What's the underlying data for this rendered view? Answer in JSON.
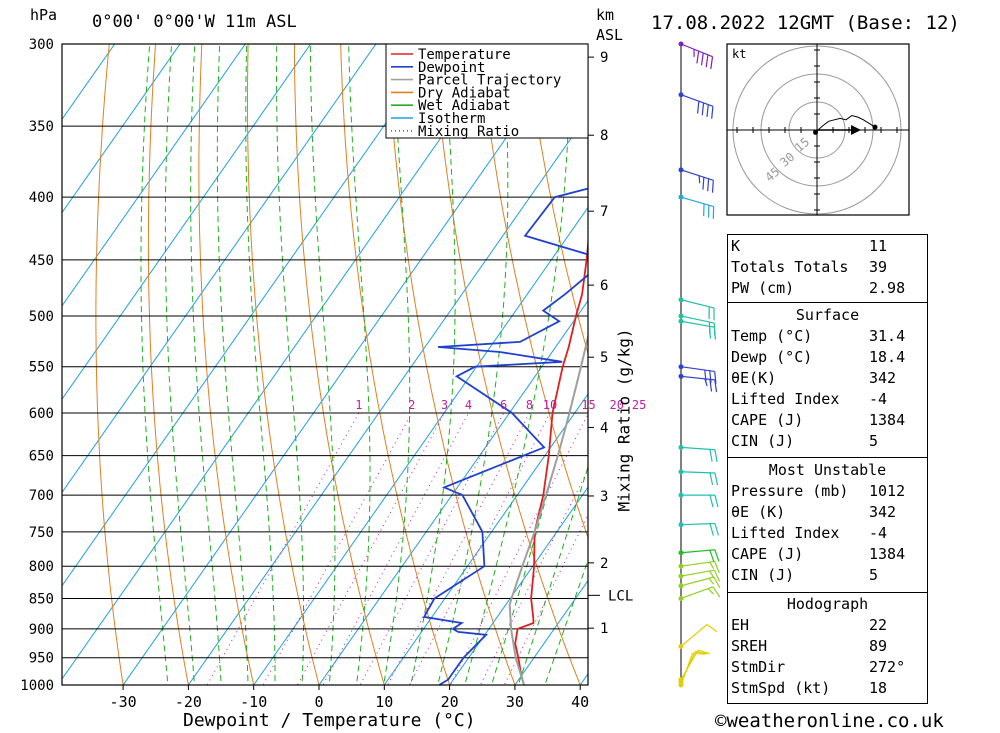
{
  "header": {
    "location": "0°00' 0°00'W 11m ASL",
    "datetime": "17.08.2022 12GMT (Base: 12)",
    "hpa_unit": "hPa",
    "km_unit": "km",
    "asl_unit": "ASL"
  },
  "legend": [
    "Temperature",
    "Dewpoint",
    "Parcel Trajectory",
    "Dry Adiabat",
    "Wet Adiabat",
    "Isotherm",
    "Mixing Ratio"
  ],
  "colors": {
    "temperature": "#e02020",
    "dewpoint": "#2040d0",
    "parcel": "#a0a0a0",
    "dry_adiabat": "#e08020",
    "wet_adiabat": "#20b020",
    "isotherm": "#20a0e0",
    "mixing_ratio": "#c020a0"
  },
  "chart_data": [
    {
      "type": "line",
      "xlabel": "Dewpoint / Temperature (°C)",
      "ylabel_right": "Mixing Ratio (g/kg)",
      "x_ticks": [
        -30,
        -20,
        -10,
        0,
        10,
        20,
        30,
        40
      ],
      "xlim": [
        -40,
        40
      ],
      "pressure_levels": [
        300,
        350,
        400,
        450,
        500,
        550,
        600,
        650,
        700,
        750,
        800,
        850,
        900,
        950,
        1000
      ],
      "ylim": [
        1000,
        300
      ],
      "km_ticks": [
        1,
        2,
        3,
        4,
        5,
        6,
        7,
        8,
        9
      ],
      "lcl_label": "LCL",
      "mixing_ratio_labels": [
        "1",
        "2",
        "3",
        "4",
        "6",
        "8",
        "10",
        "15",
        "20",
        "25"
      ],
      "series": [
        {
          "name": "Temperature",
          "points": [
            [
              1000,
              31.4
            ],
            [
              980,
              29.8
            ],
            [
              950,
              27.6
            ],
            [
              925,
              25.6
            ],
            [
              900,
              24.4
            ],
            [
              890,
              26.2
            ],
            [
              880,
              25.5
            ],
            [
              850,
              23.2
            ],
            [
              800,
              20.2
            ],
            [
              750,
              16.6
            ],
            [
              700,
              14.0
            ],
            [
              650,
              10.6
            ],
            [
              600,
              6.6
            ],
            [
              550,
              3.2
            ],
            [
              530,
              2.0
            ],
            [
              500,
              -0.2
            ],
            [
              480,
              -1.6
            ],
            [
              450,
              -4.6
            ],
            [
              420,
              -8.0
            ],
            [
              400,
              -10.8
            ],
            [
              370,
              -15.0
            ],
            [
              350,
              -18.0
            ],
            [
              320,
              -22.4
            ],
            [
              300,
              -26.2
            ]
          ]
        },
        {
          "name": "Dewpoint",
          "points": [
            [
              1000,
              18.4
            ],
            [
              990,
              19.2
            ],
            [
              950,
              19.2
            ],
            [
              910,
              20.2
            ],
            [
              905,
              15.6
            ],
            [
              900,
              14.5
            ],
            [
              890,
              15.2
            ],
            [
              880,
              8.8
            ],
            [
              850,
              8.4
            ],
            [
              800,
              12.6
            ],
            [
              750,
              8.6
            ],
            [
              700,
              1.6
            ],
            [
              690,
              -2.0
            ],
            [
              640,
              9.0
            ],
            [
              600,
              0.4
            ],
            [
              560,
              -12.0
            ],
            [
              550,
              -10.2
            ],
            [
              545,
              2.6
            ],
            [
              535,
              -8.0
            ],
            [
              530,
              -18.0
            ],
            [
              525,
              -6.0
            ],
            [
              505,
              -2.2
            ],
            [
              495,
              -5.8
            ],
            [
              480,
              -4.2
            ],
            [
              450,
              -1.6
            ],
            [
              430,
              -16.6
            ],
            [
              400,
              -16.2
            ],
            [
              375,
              0.4
            ],
            [
              350,
              -13.8
            ],
            [
              320,
              -12.6
            ],
            [
              300,
              -12.0
            ]
          ]
        },
        {
          "name": "Parcel Trajectory",
          "points": [
            [
              1000,
              31.4
            ],
            [
              950,
              27.2
            ],
            [
              900,
              23.4
            ],
            [
              860,
              20.6
            ],
            [
              850,
              20.2
            ],
            [
              800,
              18.4
            ],
            [
              750,
              16.6
            ],
            [
              700,
              14.4
            ],
            [
              650,
              12.0
            ],
            [
              600,
              9.2
            ],
            [
              550,
              6.0
            ],
            [
              500,
              2.4
            ],
            [
              450,
              -1.6
            ],
            [
              400,
              -6.4
            ],
            [
              350,
              -12.0
            ],
            [
              320,
              -15.4
            ],
            [
              300,
              -17.8
            ]
          ]
        }
      ]
    },
    {
      "type": "scatter",
      "title": "Hodograph",
      "unit_label": "kt",
      "ring_labels": [
        "15",
        "30",
        "45"
      ],
      "points": [
        [
          -0.5,
          -0.8
        ],
        [
          2,
          1.5
        ],
        [
          4,
          3
        ],
        [
          6,
          3.5
        ],
        [
          8,
          4
        ],
        [
          10,
          3.5
        ],
        [
          12,
          5
        ],
        [
          14,
          4.5
        ],
        [
          16,
          3.5
        ],
        [
          20,
          1
        ]
      ]
    }
  ],
  "wind_barbs": [
    {
      "p": 1000,
      "dir": 200,
      "spd": 8
    },
    {
      "p": 995,
      "dir": 205,
      "spd": 10
    },
    {
      "p": 990,
      "dir": 210,
      "spd": 10
    },
    {
      "p": 930,
      "dir": 230,
      "spd": 12
    },
    {
      "p": 850,
      "dir": 250,
      "spd": 14
    },
    {
      "p": 830,
      "dir": 255,
      "spd": 15
    },
    {
      "p": 815,
      "dir": 260,
      "spd": 15
    },
    {
      "p": 800,
      "dir": 262,
      "spd": 16
    },
    {
      "p": 780,
      "dir": 265,
      "spd": 18
    },
    {
      "p": 740,
      "dir": 268,
      "spd": 18
    },
    {
      "p": 700,
      "dir": 270,
      "spd": 20
    },
    {
      "p": 670,
      "dir": 272,
      "spd": 20
    },
    {
      "p": 640,
      "dir": 274,
      "spd": 22
    },
    {
      "p": 560,
      "dir": 276,
      "spd": 25
    },
    {
      "p": 550,
      "dir": 278,
      "spd": 28
    },
    {
      "p": 505,
      "dir": 280,
      "spd": 22
    },
    {
      "p": 500,
      "dir": 282,
      "spd": 20
    },
    {
      "p": 485,
      "dir": 284,
      "spd": 20
    },
    {
      "p": 400,
      "dir": 286,
      "spd": 30
    },
    {
      "p": 380,
      "dir": 288,
      "spd": 35
    },
    {
      "p": 330,
      "dir": 290,
      "spd": 40
    },
    {
      "p": 300,
      "dir": 292,
      "spd": 45
    }
  ],
  "indices": [
    {
      "label": "K",
      "value": "11"
    },
    {
      "label": "Totals Totals",
      "value": "39"
    },
    {
      "label": "PW (cm)",
      "value": "2.98"
    }
  ],
  "surface": {
    "title": "Surface",
    "rows": [
      {
        "label": "Temp (°C)",
        "value": "31.4"
      },
      {
        "label": "Dewp (°C)",
        "value": "18.4"
      },
      {
        "label": "θE(K)",
        "value": "342"
      },
      {
        "label": "Lifted Index",
        "value": "-4"
      },
      {
        "label": "CAPE (J)",
        "value": "1384"
      },
      {
        "label": "CIN (J)",
        "value": "5"
      }
    ]
  },
  "most_unstable": {
    "title": "Most Unstable",
    "rows": [
      {
        "label": "Pressure (mb)",
        "value": "1012"
      },
      {
        "label": "θE (K)",
        "value": "342"
      },
      {
        "label": "Lifted Index",
        "value": "-4"
      },
      {
        "label": "CAPE (J)",
        "value": "1384"
      },
      {
        "label": "CIN (J)",
        "value": "5"
      }
    ]
  },
  "hodograph_stats": {
    "title": "Hodograph",
    "rows": [
      {
        "label": "EH",
        "value": "22"
      },
      {
        "label": "SREH",
        "value": "89"
      },
      {
        "label": "StmDir",
        "value": "272°"
      },
      {
        "label": "StmSpd (kt)",
        "value": "18"
      }
    ]
  },
  "footer": {
    "copyright": "©weatheronline.co.uk"
  }
}
